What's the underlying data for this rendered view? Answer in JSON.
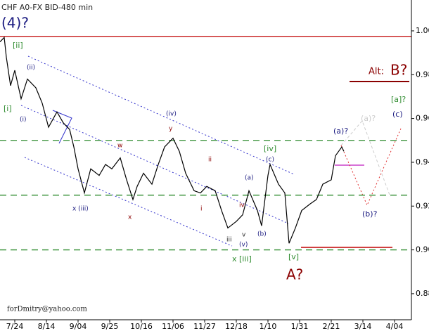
{
  "chart_data": {
    "type": "line",
    "title": "CHF A0-FX BID-480 min",
    "x": [
      0,
      2,
      3,
      5,
      7,
      10,
      13,
      17,
      20,
      23,
      27,
      30,
      33,
      35,
      37,
      40,
      43,
      47,
      50,
      53,
      57,
      60,
      63,
      65,
      68,
      72,
      75,
      78,
      82,
      85,
      88,
      92,
      95,
      98,
      102,
      105,
      108,
      112,
      115,
      118,
      122,
      124,
      127,
      128,
      132,
      135,
      137,
      140,
      143,
      147,
      150,
      153,
      157,
      159,
      162,
      163
    ],
    "series": [
      {
        "name": "CHF",
        "color": "#000000",
        "values": [
          0.995,
          0.997,
          0.988,
          0.975,
          0.982,
          0.969,
          0.978,
          0.974,
          0.967,
          0.956,
          0.963,
          0.958,
          0.955,
          0.947,
          0.937,
          0.926,
          0.937,
          0.934,
          0.939,
          0.937,
          0.942,
          0.932,
          0.923,
          0.929,
          0.935,
          0.93,
          0.939,
          0.947,
          0.951,
          0.945,
          0.935,
          0.927,
          0.926,
          0.929,
          0.927,
          0.918,
          0.91,
          0.913,
          0.916,
          0.927,
          0.918,
          0.911,
          0.934,
          0.939,
          0.93,
          0.926,
          0.903,
          0.91,
          0.918,
          0.921,
          0.923,
          0.93,
          0.932,
          0.943,
          0.947,
          0.945
        ]
      }
    ],
    "xlim": [
      0,
      195
    ],
    "xticks": [
      {
        "value": 7,
        "label": "7/24"
      },
      {
        "value": 22,
        "label": "8/14"
      },
      {
        "value": 37,
        "label": "9/04"
      },
      {
        "value": 52,
        "label": "9/25"
      },
      {
        "value": 67,
        "label": "10/16"
      },
      {
        "value": 82,
        "label": "11/06"
      },
      {
        "value": 97,
        "label": "11/27"
      },
      {
        "value": 112,
        "label": "12/18"
      },
      {
        "value": 127,
        "label": "1/10"
      },
      {
        "value": 142,
        "label": "1/31"
      },
      {
        "value": 157,
        "label": "2/21"
      },
      {
        "value": 172,
        "label": "3/14"
      },
      {
        "value": 187,
        "label": "4/04"
      }
    ],
    "ylim": [
      0.8681,
      1.0141
    ],
    "yticks": [
      {
        "value": 0.88,
        "label": "0.88"
      },
      {
        "value": 0.9,
        "label": "0.90"
      },
      {
        "value": 0.92,
        "label": "0.92"
      },
      {
        "value": 0.94,
        "label": "0.94"
      },
      {
        "value": 0.96,
        "label": "0.96"
      },
      {
        "value": 0.98,
        "label": "0.98"
      },
      {
        "value": 1.0,
        "label": "1.00"
      }
    ],
    "hlines": [
      {
        "value": 0.9975,
        "color": "#c00000",
        "dashed": false
      },
      {
        "value": 0.95,
        "color": "#2e8b2e",
        "dashed": true
      },
      {
        "value": 0.925,
        "color": "#2e8b2e",
        "dashed": true
      },
      {
        "value": 0.9,
        "color": "#2e8b2e",
        "dashed": true
      }
    ],
    "annotations": [
      "(4)?",
      "[ii]",
      "(ii)",
      "[i]",
      "(i)",
      "x (iii)",
      "w",
      "y",
      "(iv)",
      "x",
      "[iv]",
      "ii",
      "i",
      "iv",
      "iii",
      "v",
      "(a)",
      "(b)",
      "(c)",
      "(v)",
      "x [iii]",
      "[v]",
      "A?",
      "(a)?",
      "(a)?",
      "(b)?",
      "(c)",
      "[a]?",
      "Alt:",
      "B?"
    ],
    "footer": "forDmitry@yahoo.com"
  }
}
